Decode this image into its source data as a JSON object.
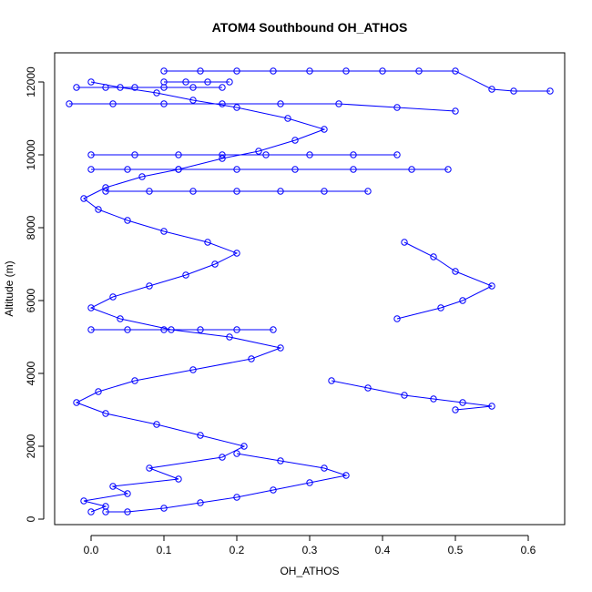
{
  "chart_data": {
    "type": "scatter",
    "title": "ATOM4 Southbound OH_ATHOS",
    "xlabel": "OH_ATHOS",
    "ylabel": "Altitude (m)",
    "xlim": [
      -0.05,
      0.65
    ],
    "ylim": [
      -150,
      12800
    ],
    "x_ticks": [
      0.0,
      0.1,
      0.2,
      0.3,
      0.4,
      0.5,
      0.6
    ],
    "x_tick_labels": [
      "0.0",
      "0.1",
      "0.2",
      "0.3",
      "0.4",
      "0.5",
      "0.6"
    ],
    "y_ticks": [
      0,
      2000,
      4000,
      6000,
      8000,
      10000,
      12000
    ],
    "y_tick_labels": [
      "0",
      "2000",
      "4000",
      "6000",
      "8000",
      "10000",
      "12000"
    ],
    "grid": false,
    "marker": "open-circle",
    "connected": true,
    "color": "#0000ff",
    "series": [
      {
        "x": [
          0.0,
          0.02,
          -0.01,
          0.05,
          0.03,
          0.12,
          0.08,
          0.18,
          0.21,
          0.15,
          0.09,
          0.02,
          -0.02,
          0.01,
          0.06,
          0.14,
          0.22,
          0.26,
          0.19,
          0.11,
          0.04,
          0.0,
          0.03,
          0.08,
          0.13,
          0.17,
          0.2,
          0.16,
          0.1,
          0.05,
          0.01,
          -0.01,
          0.02,
          0.07,
          0.12,
          0.18,
          0.23,
          0.28,
          0.32,
          0.27,
          0.2,
          0.14,
          0.09,
          0.04,
          0.0
        ],
        "y": [
          200,
          350,
          500,
          700,
          900,
          1100,
          1400,
          1700,
          2000,
          2300,
          2600,
          2900,
          3200,
          3500,
          3800,
          4100,
          4400,
          4700,
          5000,
          5200,
          5500,
          5800,
          6100,
          6400,
          6700,
          7000,
          7300,
          7600,
          7900,
          8200,
          8500,
          8800,
          9100,
          9400,
          9600,
          9900,
          10100,
          10400,
          10700,
          11000,
          11300,
          11500,
          11700,
          11850,
          12000
        ]
      },
      {
        "x": [
          0.1,
          0.15,
          0.2,
          0.25,
          0.3,
          0.35,
          0.4,
          0.45,
          0.5,
          0.55,
          0.58,
          0.63
        ],
        "y": [
          12300,
          12300,
          12300,
          12300,
          12300,
          12300,
          12300,
          12300,
          12300,
          11800,
          11750,
          11750
        ]
      },
      {
        "x": [
          0.33,
          0.38,
          0.43,
          0.47,
          0.51,
          0.55,
          0.5
        ],
        "y": [
          3800,
          3600,
          3400,
          3300,
          3200,
          3100,
          3000
        ]
      },
      {
        "x": [
          0.42,
          0.48,
          0.51,
          0.55,
          0.5,
          0.47,
          0.43
        ],
        "y": [
          5500,
          5800,
          6000,
          6400,
          6800,
          7200,
          7600
        ]
      },
      {
        "x": [
          0.02,
          0.05,
          0.1,
          0.15,
          0.2,
          0.25,
          0.3,
          0.35,
          0.32,
          0.26,
          0.2
        ],
        "y": [
          200,
          200,
          300,
          450,
          600,
          800,
          1000,
          1200,
          1400,
          1600,
          1800
        ]
      },
      {
        "x": [
          0.0,
          0.05,
          0.12,
          0.2,
          0.28,
          0.36,
          0.44,
          0.49
        ],
        "y": [
          9600,
          9600,
          9600,
          9600,
          9600,
          9600,
          9600,
          9600
        ]
      },
      {
        "x": [
          -0.02,
          0.02,
          0.06,
          0.1,
          0.14,
          0.18
        ],
        "y": [
          11850,
          11850,
          11850,
          11850,
          11850,
          11850
        ]
      },
      {
        "x": [
          0.1,
          0.13,
          0.16,
          0.19
        ],
        "y": [
          12000,
          12000,
          12000,
          12000
        ]
      },
      {
        "x": [
          -0.03,
          0.03,
          0.1,
          0.18,
          0.26,
          0.34,
          0.42,
          0.5
        ],
        "y": [
          11400,
          11400,
          11400,
          11400,
          11400,
          11400,
          11300,
          11200
        ]
      },
      {
        "x": [
          0.0,
          0.06,
          0.12,
          0.18,
          0.24,
          0.3,
          0.36,
          0.42
        ],
        "y": [
          10000,
          10000,
          10000,
          10000,
          10000,
          10000,
          10000,
          10000
        ]
      },
      {
        "x": [
          0.02,
          0.08,
          0.14,
          0.2,
          0.26,
          0.32,
          0.38
        ],
        "y": [
          9000,
          9000,
          9000,
          9000,
          9000,
          9000,
          9000
        ]
      },
      {
        "x": [
          0.0,
          0.05,
          0.1,
          0.15,
          0.2,
          0.25
        ],
        "y": [
          5200,
          5200,
          5200,
          5200,
          5200,
          5200
        ]
      }
    ]
  }
}
